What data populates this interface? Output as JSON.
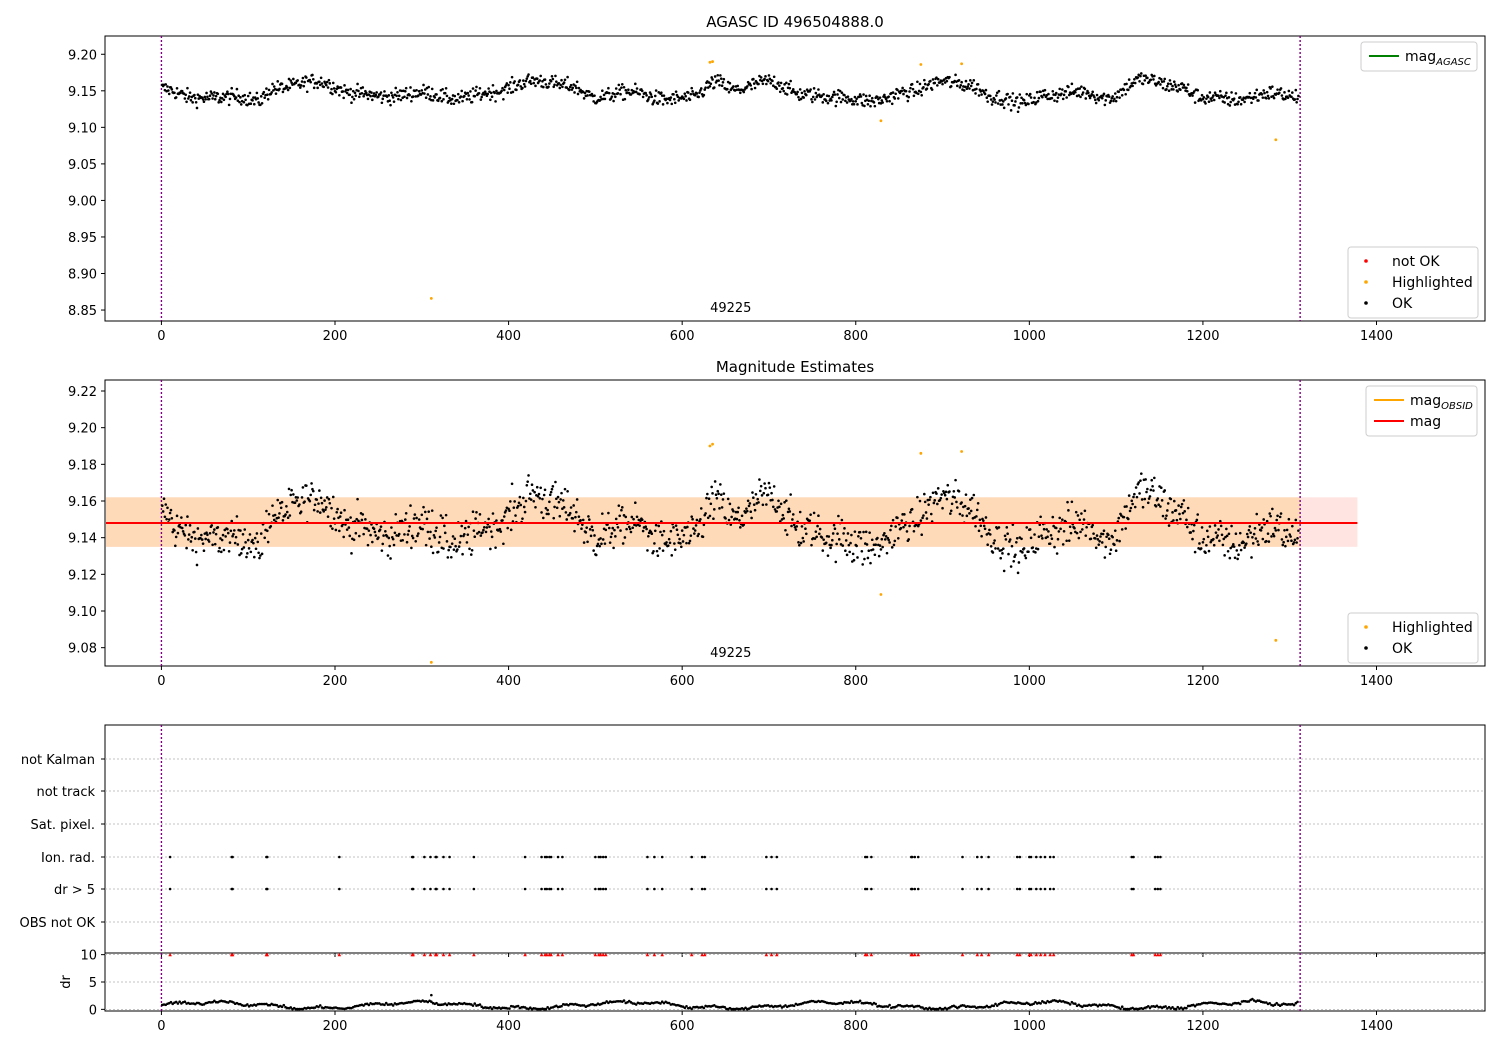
{
  "figure": {
    "title": "AGASC ID 496504888.0",
    "obsid_label": "49225",
    "colors": {
      "ok": "#000000",
      "highlighted": "#ffa500",
      "not_ok": "#ff0000",
      "agasc_line": "#008000",
      "obsid_line": "#ffa500",
      "mag_line": "#ff0000",
      "band_inner": "#ffdab9",
      "band_outer": "#ffe4e1",
      "obs_boundary": "#800080"
    }
  },
  "chart_data": [
    {
      "type": "scatter",
      "title": "AGASC ID 496504888.0",
      "xlabel": "",
      "ylabel": "",
      "xlim": [
        -65,
        1525
      ],
      "ylim": [
        8.835,
        9.225
      ],
      "xticks": [
        0,
        200,
        400,
        600,
        800,
        1000,
        1200,
        1400
      ],
      "yticks": [
        "8.85",
        "8.90",
        "8.95",
        "9.00",
        "9.05",
        "9.10",
        "9.15",
        "9.20"
      ],
      "obs_bounds": [
        0,
        1312
      ],
      "obs_label": {
        "text": "49225",
        "x": 656
      },
      "legend_upper": {
        "position": "upper right",
        "entries": [
          {
            "label": "mag",
            "sub": "AGASC",
            "kind": "line",
            "color": "#008000"
          }
        ]
      },
      "legend_lower": {
        "position": "lower right",
        "entries": [
          {
            "label": "not OK",
            "kind": "dot",
            "color": "#ff0000"
          },
          {
            "label": "Highlighted",
            "kind": "dot",
            "color": "#ffa500"
          },
          {
            "label": "OK",
            "kind": "dot",
            "color": "#000000"
          }
        ]
      },
      "series": [
        {
          "name": "OK",
          "color": "#000000",
          "base": 9.147,
          "generated": true,
          "n": 1310
        },
        {
          "name": "Highlighted",
          "color": "#ffa500",
          "points": [
            [
              311,
              8.866
            ],
            [
              632,
              9.189
            ],
            [
              635,
              9.19
            ],
            [
              829,
              9.109
            ],
            [
              875,
              9.186
            ],
            [
              922,
              9.187
            ],
            [
              1284,
              9.083
            ]
          ]
        }
      ]
    },
    {
      "type": "scatter",
      "title": "Magnitude Estimates",
      "xlabel": "",
      "ylabel": "",
      "xlim": [
        -65,
        1525
      ],
      "ylim": [
        9.07,
        9.226
      ],
      "xticks": [
        0,
        200,
        400,
        600,
        800,
        1000,
        1200,
        1400
      ],
      "yticks": [
        "9.08",
        "9.10",
        "9.12",
        "9.14",
        "9.16",
        "9.18",
        "9.20",
        "9.22"
      ],
      "obs_bounds": [
        0,
        1312
      ],
      "obs_label": {
        "text": "49225",
        "x": 656
      },
      "mag": 9.148,
      "mag_obsid": 9.148,
      "band_outer": [
        9.135,
        9.162,
        1378
      ],
      "band_inner": [
        9.135,
        9.162,
        1312
      ],
      "legend_upper": {
        "position": "upper right",
        "entries": [
          {
            "label": "mag",
            "sub": "OBSID",
            "kind": "line",
            "color": "#ffa500"
          },
          {
            "label": "mag",
            "kind": "line",
            "color": "#ff0000"
          }
        ]
      },
      "legend_lower": {
        "position": "lower right",
        "entries": [
          {
            "label": "Highlighted",
            "kind": "dot",
            "color": "#ffa500"
          },
          {
            "label": "OK",
            "kind": "dot",
            "color": "#000000"
          }
        ]
      },
      "series": [
        {
          "name": "OK",
          "color": "#000000",
          "base": 9.147,
          "generated": true,
          "n": 1310
        },
        {
          "name": "Highlighted",
          "color": "#ffa500",
          "points": [
            [
              311,
              9.072
            ],
            [
              632,
              9.19
            ],
            [
              635,
              9.191
            ],
            [
              829,
              9.109
            ],
            [
              875,
              9.186
            ],
            [
              922,
              9.187
            ],
            [
              1284,
              9.084
            ]
          ]
        }
      ]
    },
    {
      "type": "scatter",
      "title": "",
      "xlabel": "",
      "ylabel": "",
      "xlim": [
        -65,
        1525
      ],
      "xticks": [
        0,
        200,
        400,
        600,
        800,
        1000,
        1200,
        1400
      ],
      "obs_bounds": [
        0,
        1312
      ],
      "flag_rows": [
        "not Kalman",
        "not track",
        "Sat. pixel.",
        "Ion. rad.",
        "dr > 5",
        "OBS not OK"
      ],
      "flag_times": [
        10,
        81,
        82,
        121,
        122,
        205,
        289,
        290,
        303,
        310,
        316,
        317,
        325,
        332,
        360,
        419,
        438,
        442,
        444,
        447,
        449,
        457,
        462,
        500,
        504,
        506,
        509,
        512,
        560,
        568,
        577,
        611,
        623,
        626,
        697,
        703,
        709,
        811,
        813,
        818,
        864,
        865,
        868,
        872,
        923,
        940,
        945,
        953,
        986,
        989,
        1000,
        1002,
        1008,
        1013,
        1018,
        1024,
        1028,
        1118,
        1120,
        1145,
        1148,
        1151
      ]
    },
    {
      "type": "scatter",
      "title": "",
      "xlabel": "",
      "ylabel": "dr",
      "xlim": [
        -65,
        1525
      ],
      "ylim": [
        -0.3,
        10.3
      ],
      "xticks": [
        0,
        200,
        400,
        600,
        800,
        1000,
        1200,
        1400
      ],
      "yticks": [
        "0",
        "5",
        "10"
      ],
      "obs_bounds": [
        0,
        1312
      ],
      "series": [
        {
          "name": "dr",
          "color": "#000000",
          "generated": true,
          "n": 1310,
          "outlier": [
            311,
            2.6
          ]
        },
        {
          "name": "dr > 5",
          "color": "#ff0000",
          "marker": "triangle",
          "y": 10
        }
      ]
    }
  ]
}
